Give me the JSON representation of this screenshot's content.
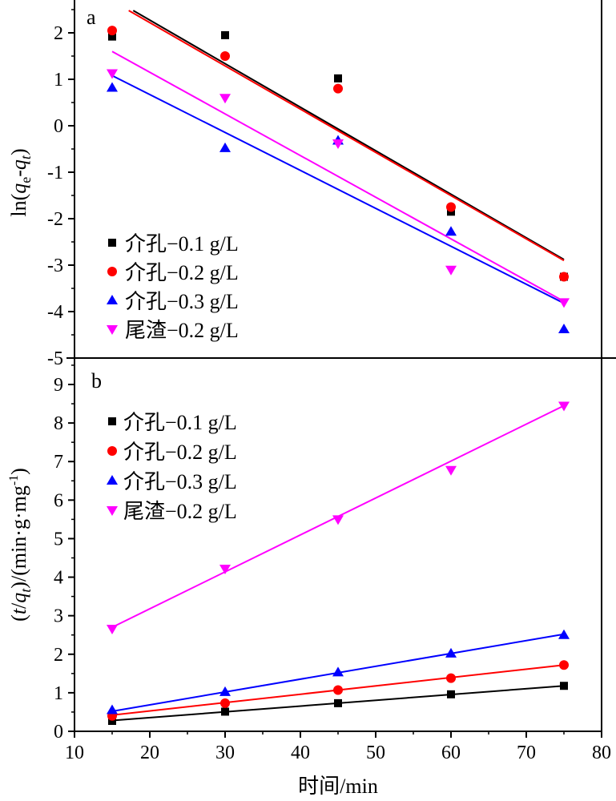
{
  "chart_data": [
    {
      "type": "scatter",
      "panel_label": "a",
      "ylabel": "ln(qe-qt)",
      "ylabel_parts": {
        "pre": "ln(",
        "q1": "q",
        "sub1": "e",
        "dash": "-",
        "q2": "q",
        "sub2": "t",
        "post": ")"
      },
      "xlim": [
        10,
        80
      ],
      "ylim": [
        -5,
        2.5
      ],
      "y_ticks": [
        2,
        1,
        0,
        -1,
        -2,
        -3,
        -4,
        -5
      ],
      "legend_position": "bottom-left",
      "grid": false,
      "series": [
        {
          "name": "介孔−0.1 g/L",
          "marker": "square",
          "color": "#000000",
          "x": [
            15,
            30,
            45,
            60,
            75
          ],
          "y": [
            1.92,
            1.95,
            1.02,
            -1.85,
            -3.25
          ],
          "fit": {
            "x": [
              17.8,
              75
            ],
            "y": [
              2.48,
              -2.88
            ]
          }
        },
        {
          "name": "介孔−0.2 g/L",
          "marker": "circle",
          "color": "#ff0000",
          "x": [
            15,
            30,
            45,
            60,
            75
          ],
          "y": [
            2.05,
            1.5,
            0.8,
            -1.75,
            -3.25
          ],
          "fit": {
            "x": [
              17.2,
              75
            ],
            "y": [
              2.48,
              -2.9
            ]
          }
        },
        {
          "name": "介孔−0.3 g/L",
          "marker": "triangle-up",
          "color": "#0000ff",
          "x": [
            15,
            30,
            45,
            60,
            75
          ],
          "y": [
            0.82,
            -0.48,
            -0.32,
            -2.28,
            -4.38
          ],
          "fit": {
            "x": [
              15,
              75
            ],
            "y": [
              1.08,
              -3.82
            ]
          }
        },
        {
          "name": "尾渣−0.2 g/L",
          "marker": "triangle-down",
          "color": "#ff00ff",
          "x": [
            15,
            30,
            45,
            60,
            75
          ],
          "y": [
            1.13,
            0.6,
            -0.38,
            -3.1,
            -3.8
          ],
          "fit": {
            "x": [
              15,
              75
            ],
            "y": [
              1.6,
              -3.78
            ]
          }
        }
      ]
    },
    {
      "type": "scatter",
      "panel_label": "b",
      "ylabel": "(t/qt)/(min·g·mg-1)",
      "ylabel_parts": {
        "open": "(",
        "t": "t",
        "slash": "/",
        "q": "q",
        "sub": "t",
        "mid": ")/(min·g·mg",
        "sup": "-1",
        "close": ")"
      },
      "xlabel": "时间/min",
      "xlim": [
        10,
        80
      ],
      "ylim": [
        0,
        9.5
      ],
      "x_ticks": [
        10,
        20,
        30,
        40,
        50,
        60,
        70,
        80
      ],
      "y_ticks": [
        0,
        1,
        2,
        3,
        4,
        5,
        6,
        7,
        8,
        9
      ],
      "legend_position": "top-left",
      "grid": false,
      "series": [
        {
          "name": "介孔−0.1 g/L",
          "marker": "square",
          "color": "#000000",
          "x": [
            15,
            30,
            45,
            60,
            75
          ],
          "y": [
            0.27,
            0.51,
            0.73,
            0.96,
            1.18
          ],
          "fit": {
            "x": [
              15,
              75
            ],
            "y": [
              0.28,
              1.18
            ]
          }
        },
        {
          "name": "介孔−0.2 g/L",
          "marker": "circle",
          "color": "#ff0000",
          "x": [
            15,
            30,
            45,
            60,
            75
          ],
          "y": [
            0.4,
            0.73,
            1.07,
            1.38,
            1.72
          ],
          "fit": {
            "x": [
              15,
              75
            ],
            "y": [
              0.42,
              1.72
            ]
          }
        },
        {
          "name": "介孔−0.3 g/L",
          "marker": "triangle-up",
          "color": "#0000ff",
          "x": [
            15,
            30,
            45,
            60,
            75
          ],
          "y": [
            0.55,
            1.02,
            1.53,
            2.02,
            2.5
          ],
          "fit": {
            "x": [
              15,
              75
            ],
            "y": [
              0.52,
              2.52
            ]
          }
        },
        {
          "name": "尾渣−0.2 g/L",
          "marker": "triangle-down",
          "color": "#ff00ff",
          "x": [
            15,
            30,
            45,
            60,
            75
          ],
          "y": [
            2.66,
            4.22,
            5.5,
            6.78,
            8.45
          ],
          "fit": {
            "x": [
              15,
              75
            ],
            "y": [
              2.7,
              8.45
            ]
          }
        }
      ]
    }
  ]
}
